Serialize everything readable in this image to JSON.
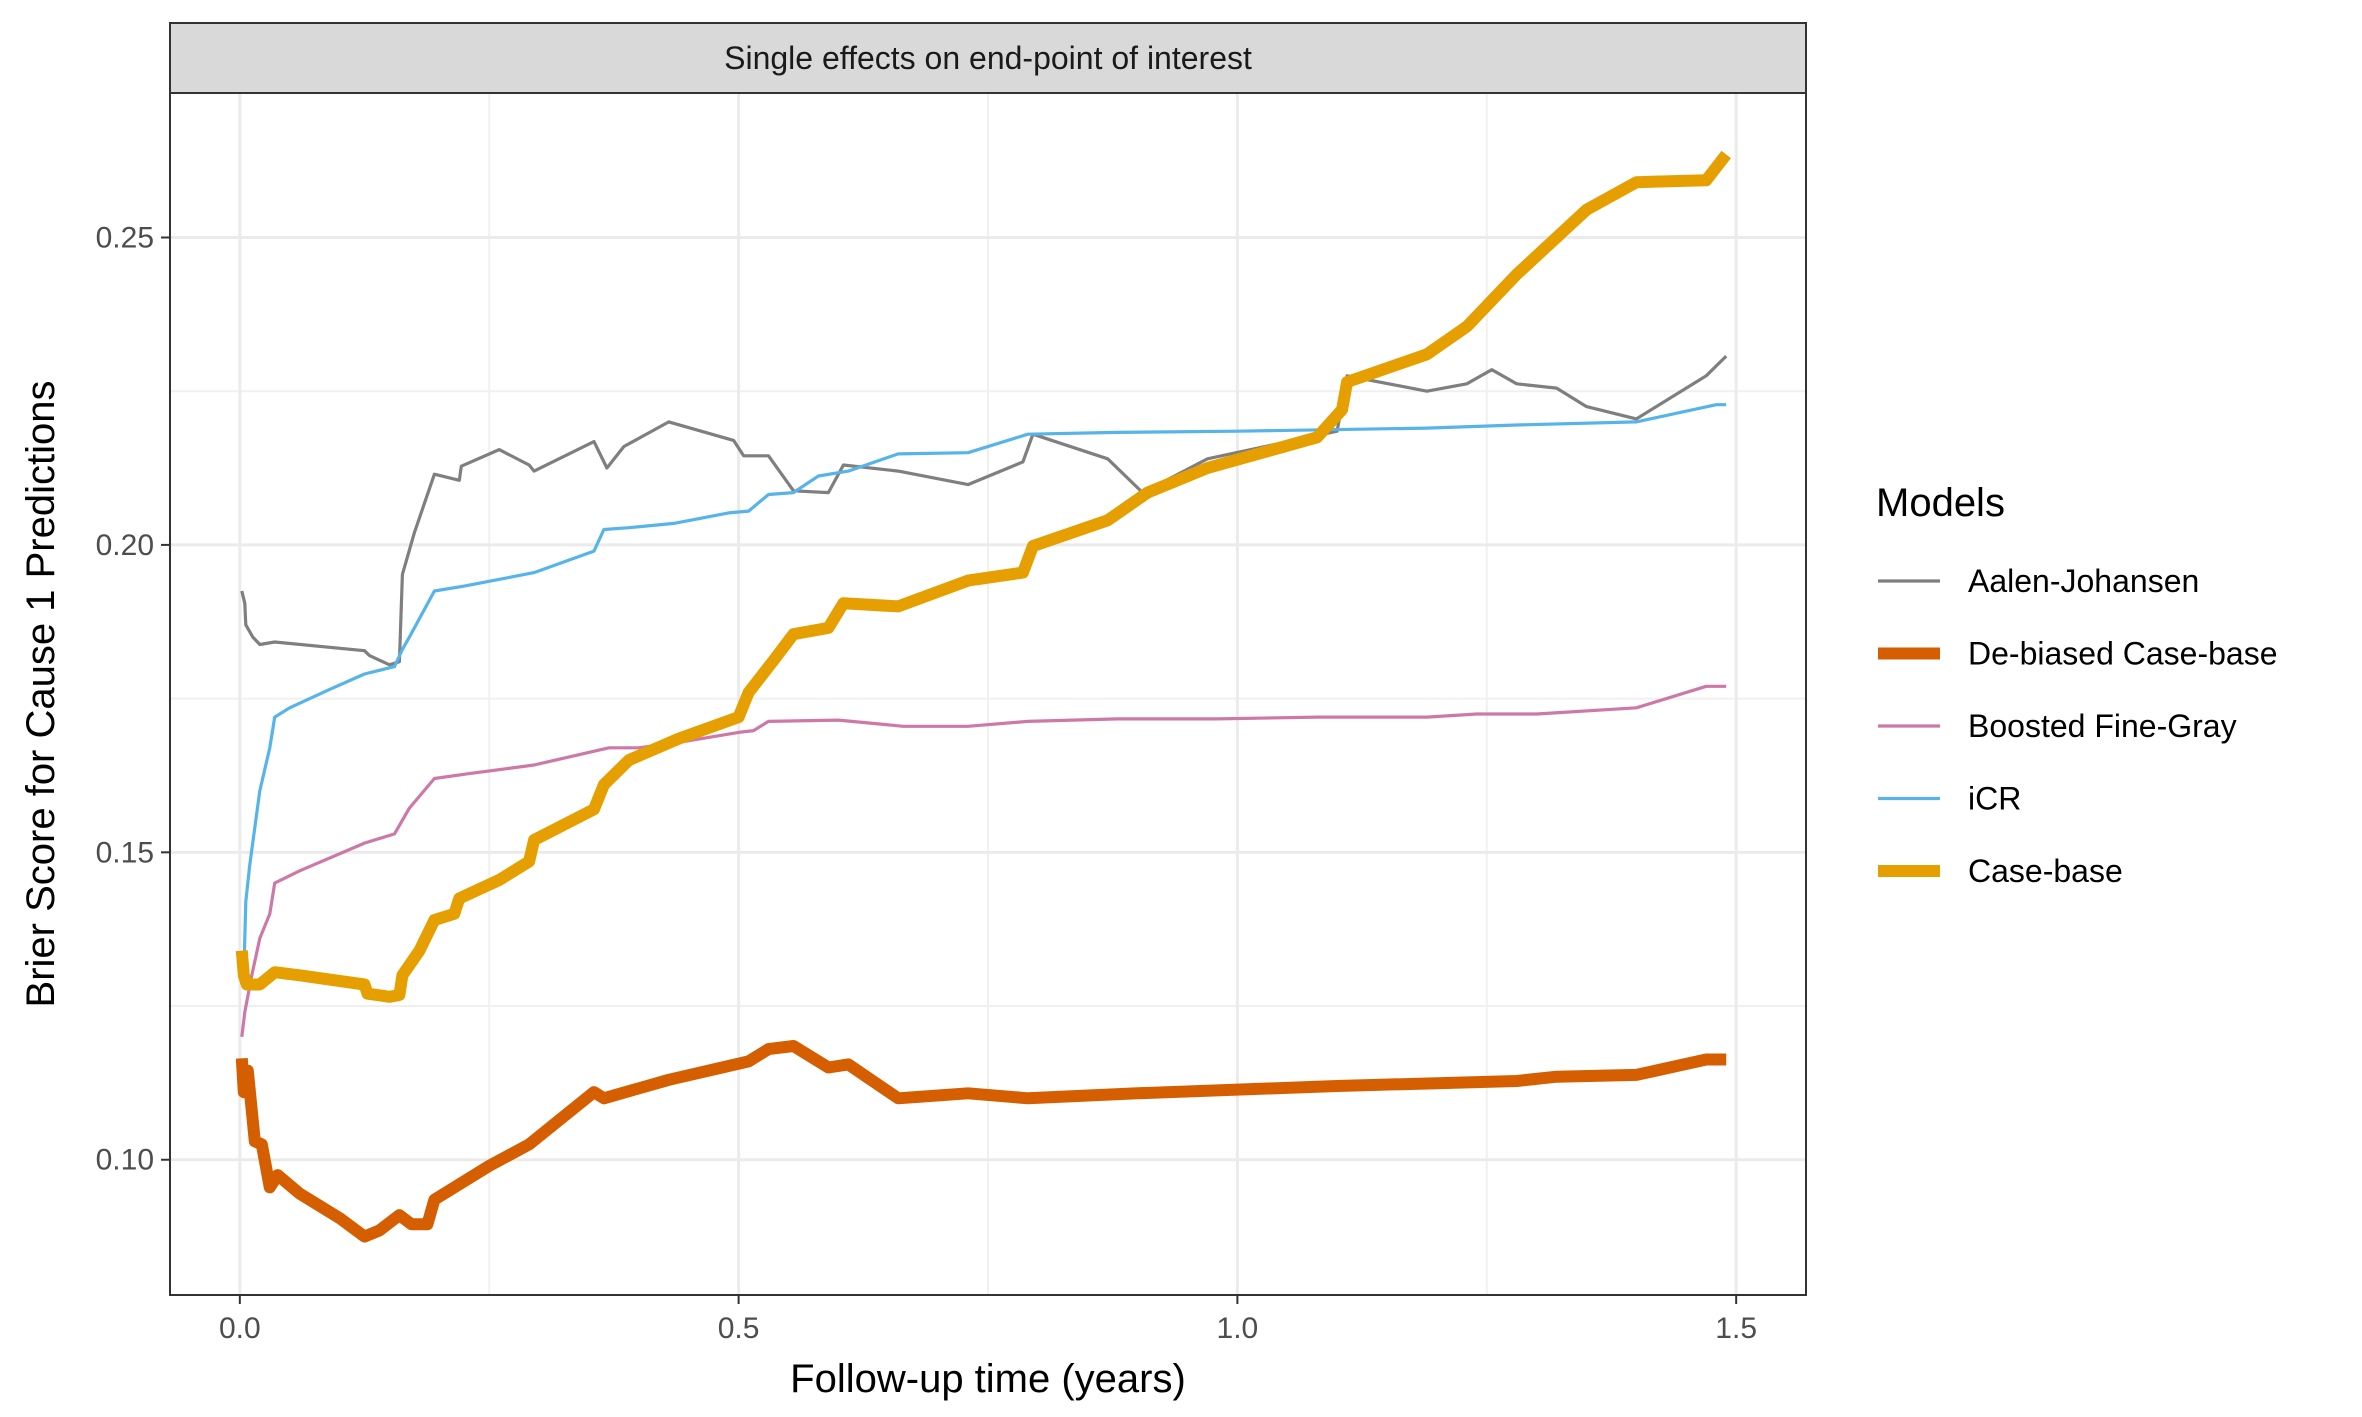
{
  "chart_data": {
    "type": "line",
    "title": "Single effects on end-point of interest",
    "xlabel": "Follow-up time (years)",
    "ylabel": "Brier Score for Cause 1 Predictions",
    "xlim": [
      -0.07,
      1.57
    ],
    "ylim": [
      0.078,
      0.2735
    ],
    "x_ticks": [
      0.0,
      0.5,
      1.0,
      1.5
    ],
    "x_tick_labels": [
      "0.0",
      "0.5",
      "1.0",
      "1.5"
    ],
    "y_ticks": [
      0.1,
      0.15,
      0.2,
      0.25
    ],
    "y_tick_labels": [
      "0.10",
      "0.15",
      "0.20",
      "0.25"
    ],
    "grid": true,
    "legend_title": "Models",
    "legend_position": "right",
    "series": [
      {
        "name": "Aalen-Johansen",
        "color": "#7f7f7f",
        "width": "thin",
        "points": [
          [
            0.002,
            0.1925
          ],
          [
            0.005,
            0.1905
          ],
          [
            0.006,
            0.187
          ],
          [
            0.013,
            0.185
          ],
          [
            0.02,
            0.1838
          ],
          [
            0.035,
            0.1842
          ],
          [
            0.125,
            0.1828
          ],
          [
            0.13,
            0.182
          ],
          [
            0.15,
            0.1805
          ],
          [
            0.16,
            0.181
          ],
          [
            0.163,
            0.1952
          ],
          [
            0.175,
            0.202
          ],
          [
            0.195,
            0.2115
          ],
          [
            0.22,
            0.2105
          ],
          [
            0.222,
            0.2128
          ],
          [
            0.26,
            0.2155
          ],
          [
            0.29,
            0.213
          ],
          [
            0.295,
            0.212
          ],
          [
            0.355,
            0.2168
          ],
          [
            0.368,
            0.2125
          ],
          [
            0.385,
            0.216
          ],
          [
            0.43,
            0.22
          ],
          [
            0.495,
            0.217
          ],
          [
            0.505,
            0.2145
          ],
          [
            0.53,
            0.2145
          ],
          [
            0.555,
            0.2088
          ],
          [
            0.59,
            0.2085
          ],
          [
            0.605,
            0.213
          ],
          [
            0.66,
            0.212
          ],
          [
            0.73,
            0.2098
          ],
          [
            0.785,
            0.2135
          ],
          [
            0.795,
            0.218
          ],
          [
            0.87,
            0.214
          ],
          [
            0.905,
            0.2085
          ],
          [
            0.97,
            0.214
          ],
          [
            1.1,
            0.2185
          ],
          [
            1.11,
            0.2275
          ],
          [
            1.19,
            0.225
          ],
          [
            1.23,
            0.2262
          ],
          [
            1.255,
            0.2285
          ],
          [
            1.28,
            0.2262
          ],
          [
            1.32,
            0.2255
          ],
          [
            1.35,
            0.2225
          ],
          [
            1.4,
            0.2205
          ],
          [
            1.47,
            0.2275
          ],
          [
            1.49,
            0.2307
          ]
        ]
      },
      {
        "name": "De-biased Case-base",
        "color": "#d55e00",
        "width": "thick",
        "points": [
          [
            0.002,
            0.1165
          ],
          [
            0.004,
            0.111
          ],
          [
            0.008,
            0.1145
          ],
          [
            0.015,
            0.103
          ],
          [
            0.022,
            0.1025
          ],
          [
            0.03,
            0.0955
          ],
          [
            0.038,
            0.0975
          ],
          [
            0.06,
            0.0945
          ],
          [
            0.1,
            0.0905
          ],
          [
            0.125,
            0.0875
          ],
          [
            0.14,
            0.0885
          ],
          [
            0.16,
            0.091
          ],
          [
            0.172,
            0.0895
          ],
          [
            0.188,
            0.0895
          ],
          [
            0.195,
            0.0935
          ],
          [
            0.22,
            0.096
          ],
          [
            0.25,
            0.099
          ],
          [
            0.29,
            0.1025
          ],
          [
            0.355,
            0.111
          ],
          [
            0.365,
            0.11
          ],
          [
            0.43,
            0.113
          ],
          [
            0.51,
            0.116
          ],
          [
            0.53,
            0.118
          ],
          [
            0.555,
            0.1185
          ],
          [
            0.59,
            0.115
          ],
          [
            0.61,
            0.1155
          ],
          [
            0.66,
            0.11
          ],
          [
            0.73,
            0.1108
          ],
          [
            0.79,
            0.11
          ],
          [
            0.9,
            0.1108
          ],
          [
            1.1,
            0.112
          ],
          [
            1.28,
            0.1128
          ],
          [
            1.32,
            0.1135
          ],
          [
            1.4,
            0.1138
          ],
          [
            1.47,
            0.1163
          ],
          [
            1.49,
            0.1163
          ]
        ]
      },
      {
        "name": "Boosted Fine-Gray",
        "color": "#cc79a7",
        "width": "thin",
        "points": [
          [
            0.002,
            0.12
          ],
          [
            0.005,
            0.124
          ],
          [
            0.012,
            0.13
          ],
          [
            0.02,
            0.136
          ],
          [
            0.03,
            0.14
          ],
          [
            0.035,
            0.145
          ],
          [
            0.06,
            0.147
          ],
          [
            0.125,
            0.1515
          ],
          [
            0.155,
            0.153
          ],
          [
            0.17,
            0.1572
          ],
          [
            0.195,
            0.162
          ],
          [
            0.23,
            0.1628
          ],
          [
            0.295,
            0.1642
          ],
          [
            0.37,
            0.167
          ],
          [
            0.4,
            0.167
          ],
          [
            0.445,
            0.168
          ],
          [
            0.5,
            0.1695
          ],
          [
            0.515,
            0.1698
          ],
          [
            0.53,
            0.1713
          ],
          [
            0.6,
            0.1715
          ],
          [
            0.665,
            0.1705
          ],
          [
            0.73,
            0.1705
          ],
          [
            0.79,
            0.1713
          ],
          [
            0.88,
            0.1717
          ],
          [
            0.98,
            0.1717
          ],
          [
            1.08,
            0.172
          ],
          [
            1.19,
            0.172
          ],
          [
            1.24,
            0.1725
          ],
          [
            1.3,
            0.1725
          ],
          [
            1.4,
            0.1735
          ],
          [
            1.47,
            0.177
          ],
          [
            1.49,
            0.177
          ]
        ]
      },
      {
        "name": "iCR",
        "color": "#56b4e9",
        "width": "thin",
        "points": [
          [
            0.002,
            0.1285
          ],
          [
            0.004,
            0.13
          ],
          [
            0.006,
            0.142
          ],
          [
            0.01,
            0.148
          ],
          [
            0.02,
            0.16
          ],
          [
            0.03,
            0.167
          ],
          [
            0.035,
            0.172
          ],
          [
            0.05,
            0.1735
          ],
          [
            0.09,
            0.1765
          ],
          [
            0.125,
            0.179
          ],
          [
            0.155,
            0.1802
          ],
          [
            0.163,
            0.183
          ],
          [
            0.17,
            0.185
          ],
          [
            0.195,
            0.1925
          ],
          [
            0.225,
            0.1933
          ],
          [
            0.295,
            0.1955
          ],
          [
            0.355,
            0.199
          ],
          [
            0.365,
            0.2025
          ],
          [
            0.39,
            0.2028
          ],
          [
            0.435,
            0.2035
          ],
          [
            0.49,
            0.2052
          ],
          [
            0.51,
            0.2055
          ],
          [
            0.53,
            0.2082
          ],
          [
            0.555,
            0.2085
          ],
          [
            0.58,
            0.2112
          ],
          [
            0.61,
            0.212
          ],
          [
            0.66,
            0.2148
          ],
          [
            0.73,
            0.215
          ],
          [
            0.79,
            0.218
          ],
          [
            0.88,
            0.2183
          ],
          [
            1.0,
            0.2185
          ],
          [
            1.19,
            0.219
          ],
          [
            1.28,
            0.2195
          ],
          [
            1.4,
            0.22
          ],
          [
            1.48,
            0.2228
          ],
          [
            1.49,
            0.2228
          ]
        ]
      },
      {
        "name": "Case-base",
        "color": "#e69f00",
        "width": "thick",
        "points": [
          [
            0.002,
            0.134
          ],
          [
            0.004,
            0.13
          ],
          [
            0.007,
            0.1285
          ],
          [
            0.02,
            0.1285
          ],
          [
            0.035,
            0.1305
          ],
          [
            0.06,
            0.13
          ],
          [
            0.125,
            0.1285
          ],
          [
            0.128,
            0.127
          ],
          [
            0.15,
            0.1265
          ],
          [
            0.16,
            0.1268
          ],
          [
            0.163,
            0.13
          ],
          [
            0.18,
            0.134
          ],
          [
            0.195,
            0.139
          ],
          [
            0.215,
            0.14
          ],
          [
            0.22,
            0.1425
          ],
          [
            0.26,
            0.1455
          ],
          [
            0.29,
            0.1485
          ],
          [
            0.295,
            0.152
          ],
          [
            0.355,
            0.157
          ],
          [
            0.365,
            0.161
          ],
          [
            0.39,
            0.165
          ],
          [
            0.44,
            0.1685
          ],
          [
            0.5,
            0.172
          ],
          [
            0.51,
            0.176
          ],
          [
            0.535,
            0.1812
          ],
          [
            0.555,
            0.1855
          ],
          [
            0.59,
            0.1865
          ],
          [
            0.605,
            0.1905
          ],
          [
            0.66,
            0.19
          ],
          [
            0.73,
            0.1942
          ],
          [
            0.785,
            0.1955
          ],
          [
            0.795,
            0.1998
          ],
          [
            0.87,
            0.204
          ],
          [
            0.91,
            0.2085
          ],
          [
            0.97,
            0.2125
          ],
          [
            1.08,
            0.2175
          ],
          [
            1.105,
            0.222
          ],
          [
            1.11,
            0.2265
          ],
          [
            1.19,
            0.231
          ],
          [
            1.23,
            0.2355
          ],
          [
            1.28,
            0.244
          ],
          [
            1.35,
            0.2545
          ],
          [
            1.4,
            0.259
          ],
          [
            1.47,
            0.2593
          ],
          [
            1.49,
            0.2635
          ]
        ]
      }
    ]
  }
}
